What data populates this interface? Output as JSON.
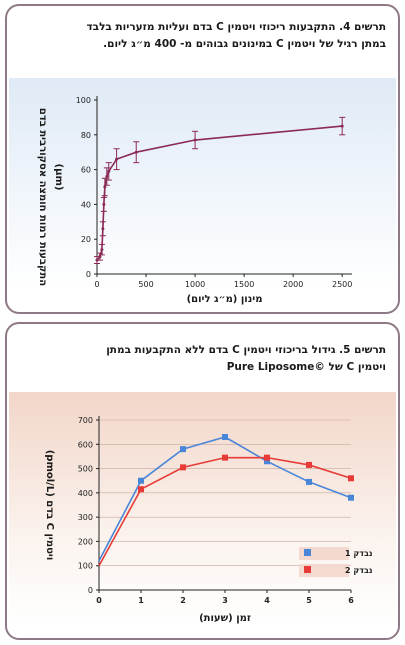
{
  "figure4": {
    "caption_line1": "תרשים 4. התקבעות ריכוזי ויטמין C בדם ועליות מזעריות בלבד",
    "caption_line2": "במתן רגיל של ויטמין C במינונים גבוהים מ- 400 מ״ג ליום.",
    "chart_data": {
      "type": "line",
      "x": [
        0,
        30,
        50,
        60,
        70,
        80,
        100,
        120,
        200,
        400,
        1000,
        2500
      ],
      "values": [
        8,
        10,
        14,
        26,
        40,
        50,
        56,
        59,
        66,
        70,
        77,
        85
      ],
      "errors": [
        2,
        2,
        3,
        4,
        4,
        5,
        5,
        5,
        6,
        6,
        5,
        5
      ],
      "xticks": [
        "0",
        "500",
        "1000",
        "1500",
        "2000",
        "2500"
      ],
      "yticks": [
        "0",
        "20",
        "40",
        "60",
        "80",
        "100"
      ],
      "xlim": [
        0,
        2600
      ],
      "ylim": [
        0,
        100
      ],
      "xlabel": "מינון (מ״ג ליום)",
      "ylabel_line1": "התקבעות רמות חומצה אסקורבית בדם",
      "ylabel_line2": "(μm)",
      "color": "#8b2a55",
      "grid": false
    }
  },
  "figure5": {
    "caption_line1": "תרשים 5. גידול בריכוזי ויטמין C בדם ללא התקבעות במתן",
    "caption_line2": "ויטמין C של ©Pure Liposome",
    "chart_data": {
      "type": "line",
      "x": [
        0,
        1,
        2,
        3,
        4,
        5,
        6
      ],
      "series": [
        {
          "name": "נבדק 1",
          "color": "#4a86d8",
          "values": [
            120,
            450,
            580,
            630,
            530,
            445,
            380
          ]
        },
        {
          "name": "נבדק 2",
          "color": "#e63b36",
          "values": [
            100,
            415,
            505,
            545,
            545,
            515,
            460
          ]
        }
      ],
      "xticks": [
        "0",
        "1",
        "2",
        "3",
        "4",
        "5",
        "6"
      ],
      "yticks": [
        "0",
        "100",
        "200",
        "300",
        "400",
        "500",
        "600",
        "700"
      ],
      "xlim": [
        0,
        6
      ],
      "ylim": [
        0,
        700
      ],
      "xlabel": "זמן (שעות)",
      "ylabel": "ויטמין C בדם (pmol/L)",
      "legend_position": "right",
      "grid": true
    }
  }
}
